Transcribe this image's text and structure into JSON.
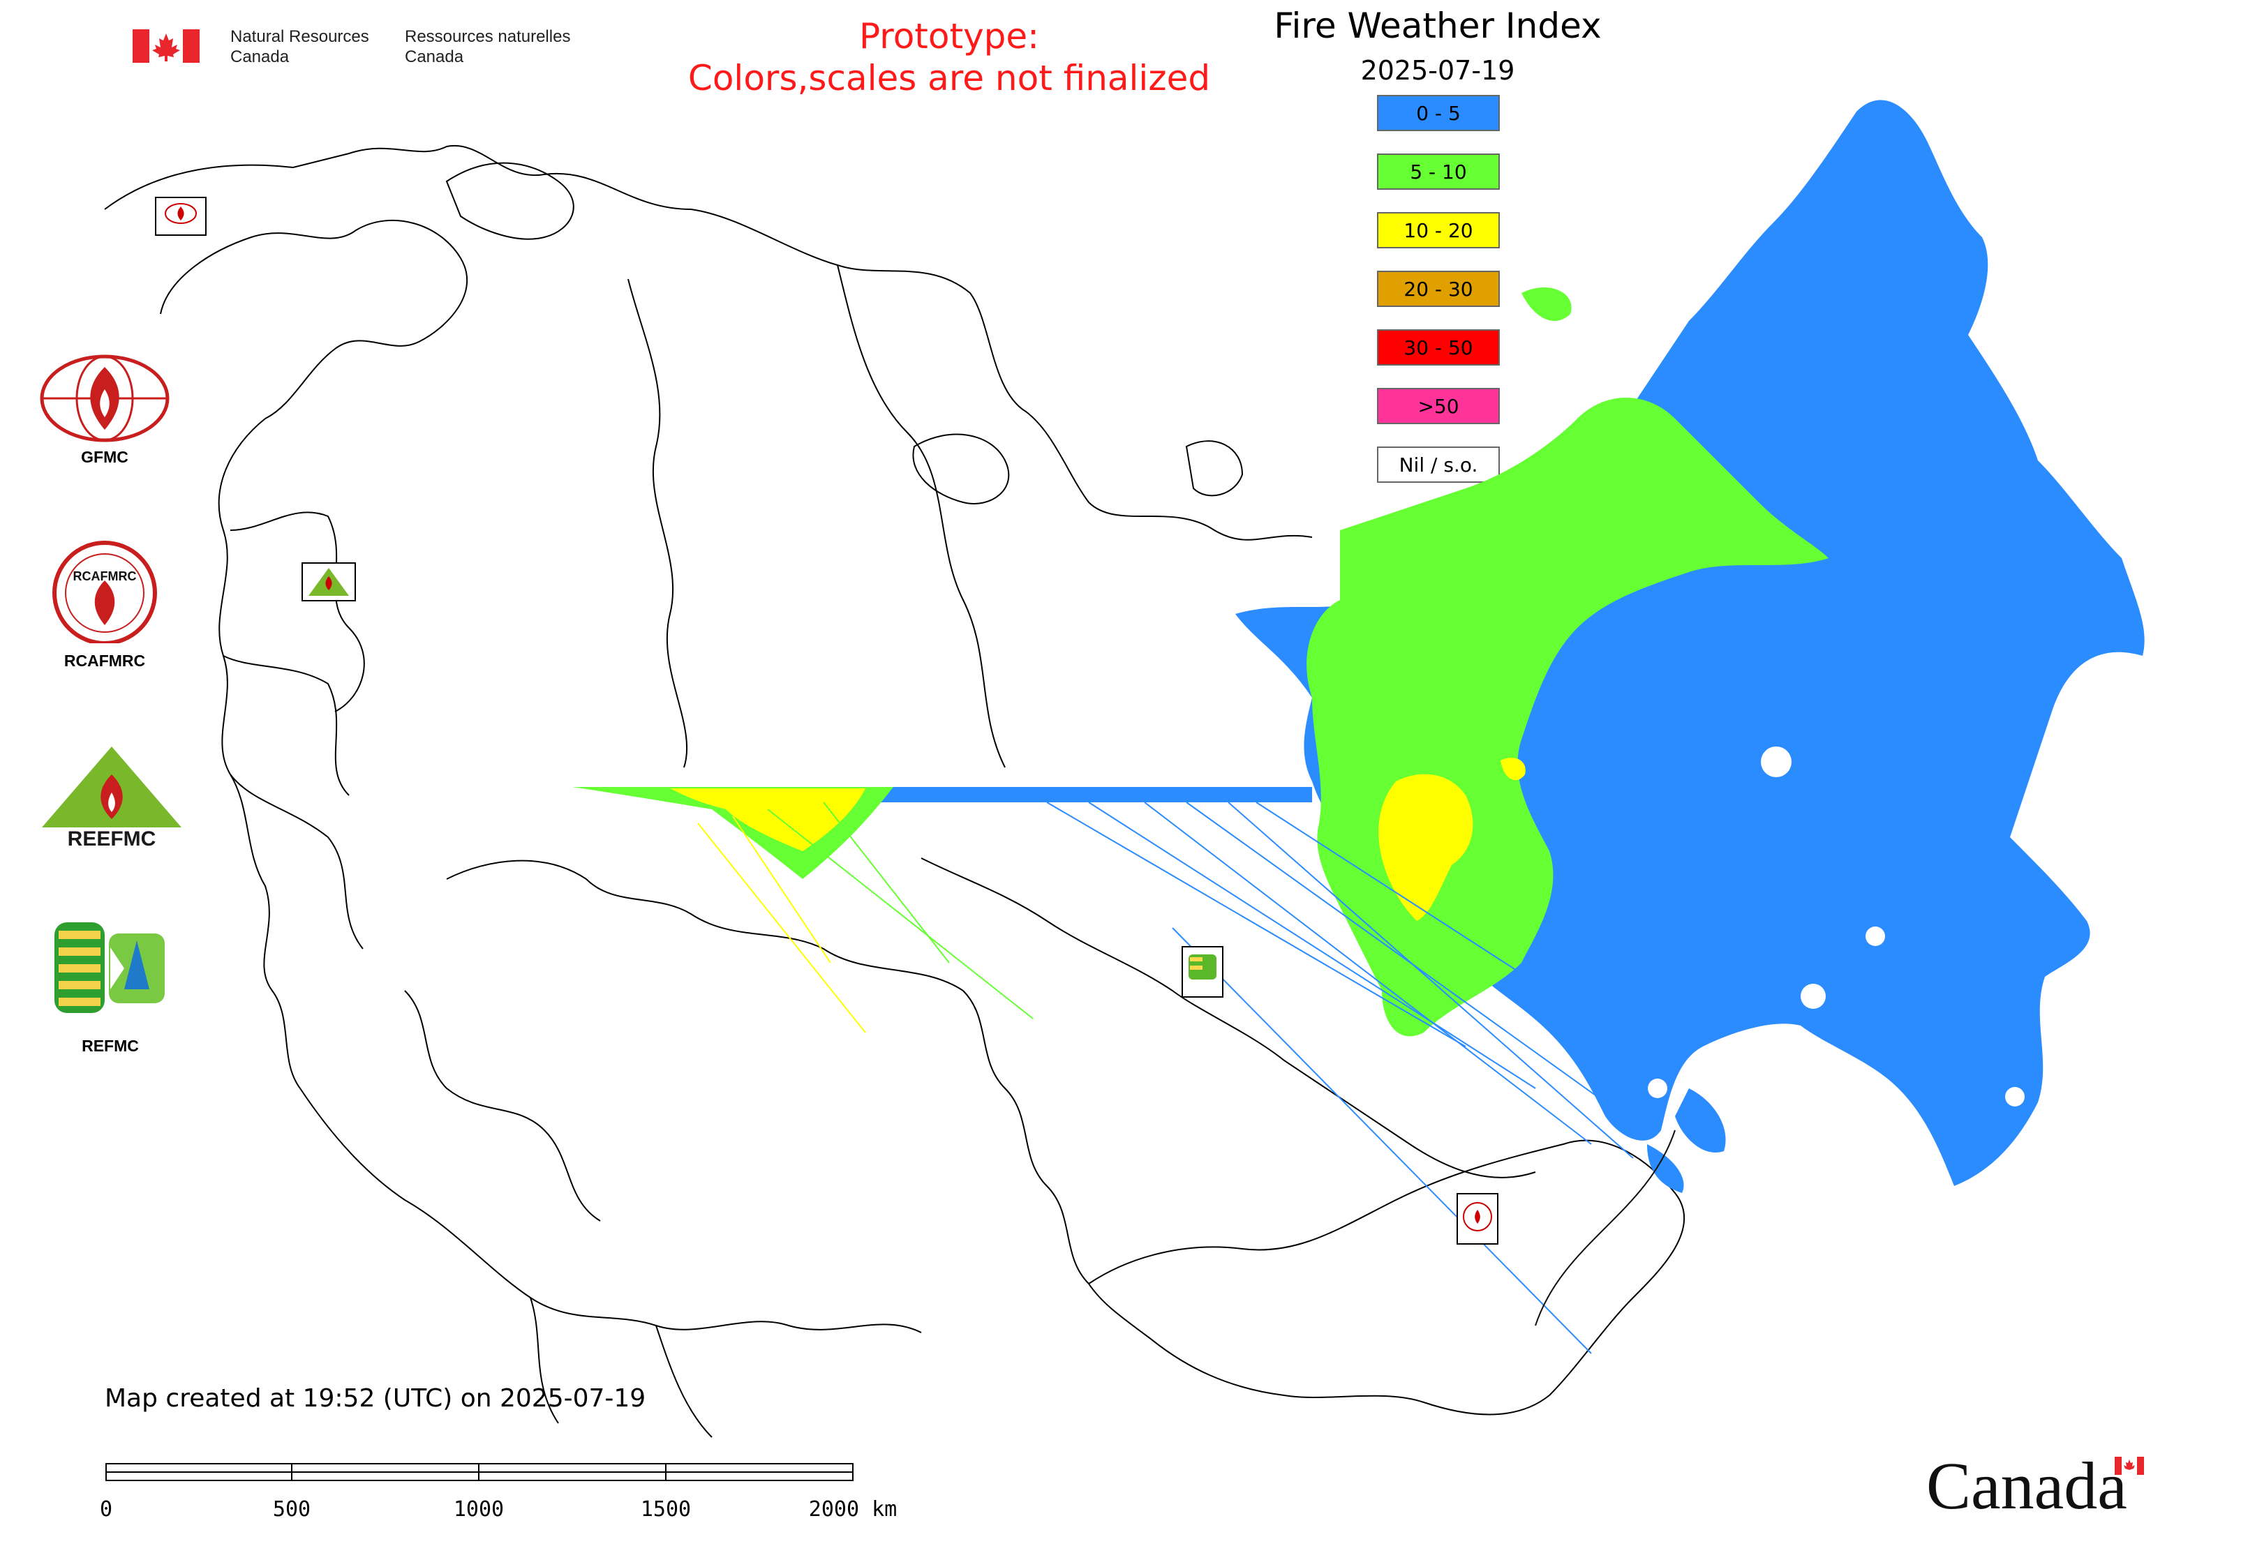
{
  "header": {
    "agency_en_line1": "Natural Resources",
    "agency_en_line2": "Canada",
    "agency_fr_line1": "Ressources naturelles",
    "agency_fr_line2": "Canada",
    "prototype_line1": "Prototype:",
    "prototype_line2": "Colors,scales are not finalized",
    "title": "Fire Weather Index",
    "date": "2025-07-19"
  },
  "legend": [
    {
      "label": "0 - 5",
      "color": "#2b8cff"
    },
    {
      "label": "5 - 10",
      "color": "#66ff33"
    },
    {
      "label": "10 - 20",
      "color": "#ffff00"
    },
    {
      "label": "20 - 30",
      "color": "#e0a000"
    },
    {
      "label": "30 - 50",
      "color": "#ff0000"
    },
    {
      "label": ">50",
      "color": "#ff3399"
    },
    {
      "label": "Nil / s.o.",
      "color": "#ffffff"
    }
  ],
  "logos": {
    "gfmc": "GFMC",
    "rcafmrc": "RCAFMRC",
    "reefmc": "REEFMC",
    "refmc": "REFMC"
  },
  "footer": {
    "created": "Map created at 19:52 (UTC) on 2025-07-19",
    "scale_labels": [
      "0",
      "500",
      "1000",
      "1500",
      "2000 km"
    ],
    "canada_wordmark": "Canada"
  }
}
